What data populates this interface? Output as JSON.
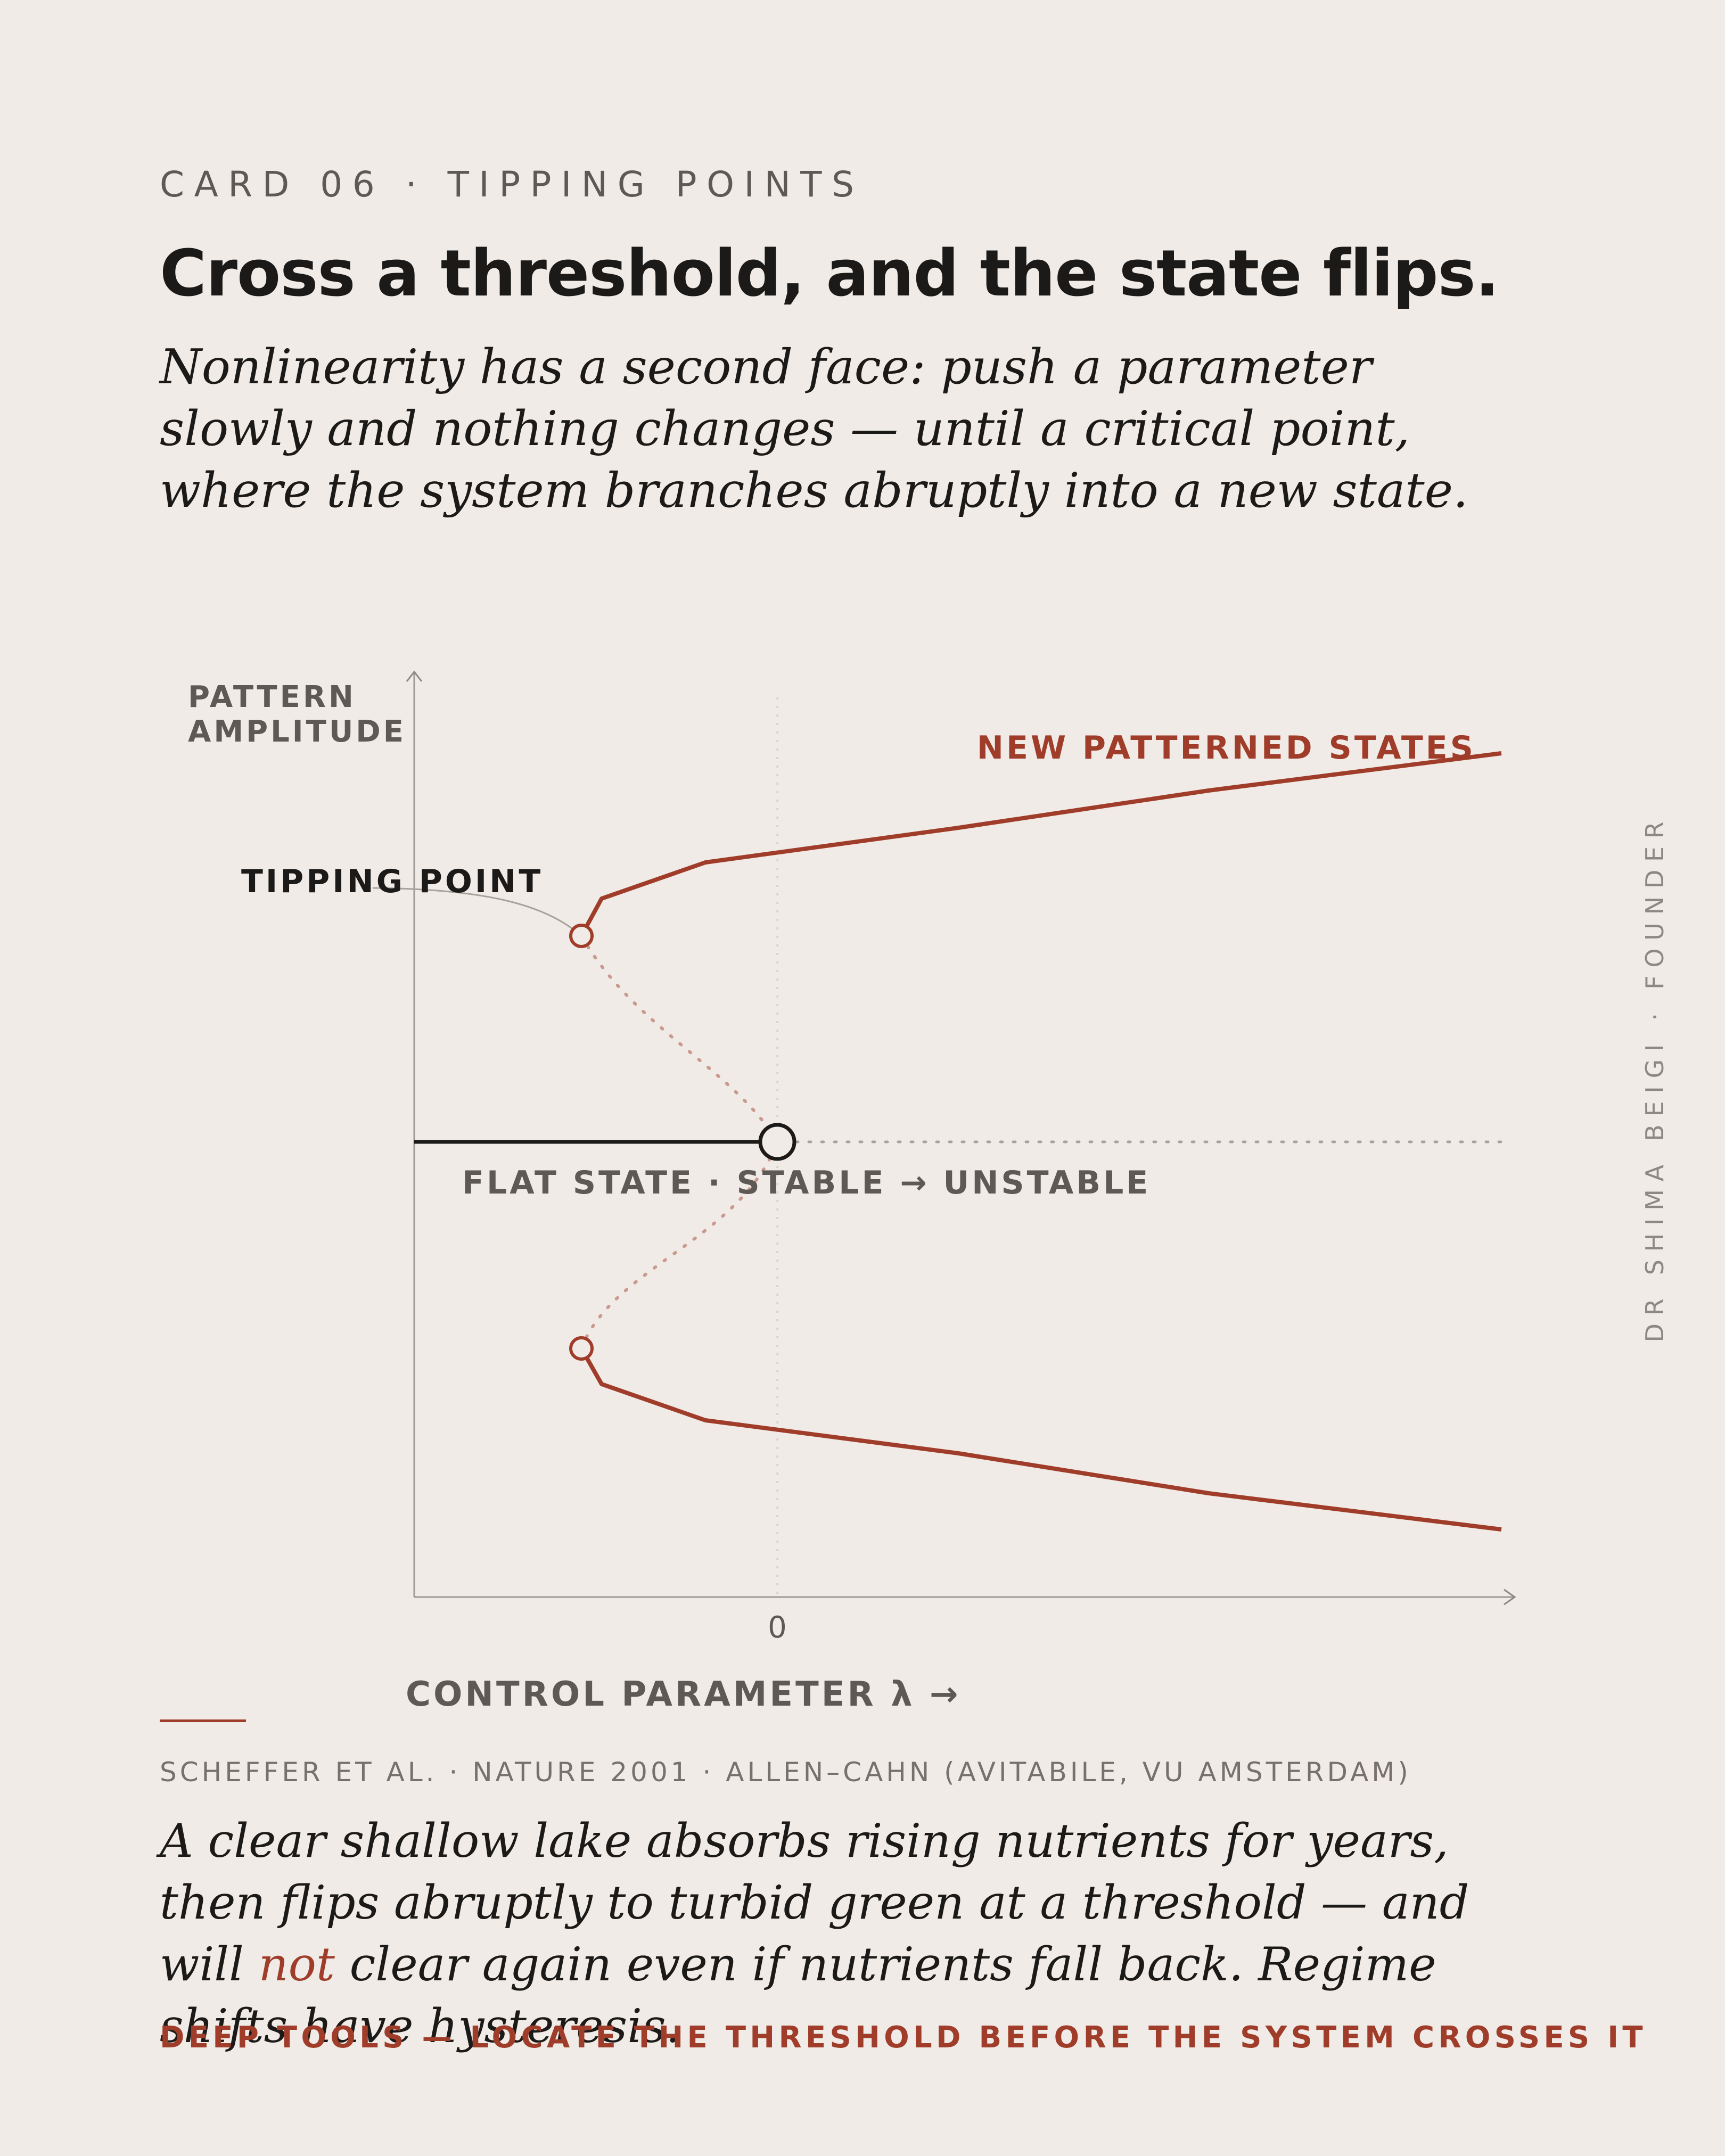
{
  "card": {
    "eyebrow": "CARD 06 · TIPPING POINTS",
    "title": "Cross a threshold, and the state flips.",
    "subtitle": "Nonlinearity has a second face: push a parameter slowly and nothing changes — until a critical point, where the system branches abruptly into a new state."
  },
  "diagram": {
    "y_axis_label_line1": "PATTERN",
    "y_axis_label_line2": "AMPLITUDE",
    "x_axis_label": "CONTROL PARAMETER λ →",
    "x_tick_zero": "0",
    "tipping_point_label": "TIPPING POINT",
    "new_states_label": "NEW PATTERNED STATES",
    "flat_state_label": "FLAT STATE · STABLE → UNSTABLE",
    "colors": {
      "accent": "#a03d2a",
      "ink": "#1c1a18",
      "axis": "#8e8882",
      "muted_text": "#5e5954",
      "background": "#f0ebe6"
    }
  },
  "source": "SCHEFFER ET AL. · NATURE 2001 · ALLEN–CAHN (AVITABILE, VU AMSTERDAM)",
  "caption": {
    "part1": "A clear shallow lake absorbs rising nutrients for years, then flips abruptly to turbid green at a threshold — and will ",
    "highlight": "not",
    "part2": " clear again even if nutrients fall back. Regime shifts have hysteresis."
  },
  "footer": "DEEP TOOLS — LOCATE THE THRESHOLD BEFORE THE SYSTEM CROSSES IT",
  "author": "DR SHIMA BEIGI · FOUNDER"
}
